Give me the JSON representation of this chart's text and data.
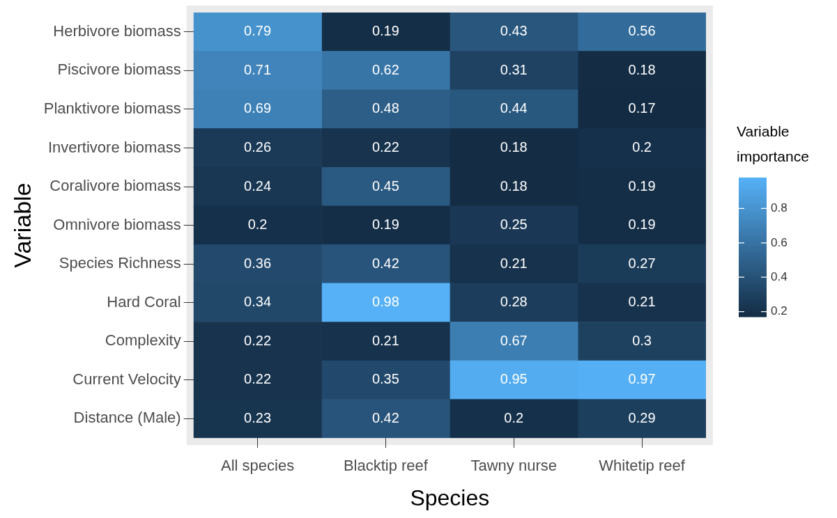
{
  "chart_data": {
    "type": "heatmap",
    "xlabel": "Species",
    "ylabel": "Variable",
    "clabel": "Variable importance",
    "categories": [
      "All species",
      "Blacktip reef",
      "Tawny nurse",
      "Whitetip reef"
    ],
    "y_categories": [
      "Herbivore biomass",
      "Piscivore biomass",
      "Planktivore biomass",
      "Invertivore biomass",
      "Coralivore biomass",
      "Omnivore biomass",
      "Species Richness",
      "Hard Coral",
      "Complexity",
      "Current Velocity",
      "Distance (Male)"
    ],
    "cells": [
      [
        0.79,
        0.19,
        0.43,
        0.56
      ],
      [
        0.71,
        0.62,
        0.31,
        0.18
      ],
      [
        0.69,
        0.48,
        0.44,
        0.17
      ],
      [
        0.26,
        0.22,
        0.18,
        0.2
      ],
      [
        0.24,
        0.45,
        0.18,
        0.19
      ],
      [
        0.2,
        0.19,
        0.25,
        0.19
      ],
      [
        0.36,
        0.42,
        0.21,
        0.27
      ],
      [
        0.34,
        0.98,
        0.28,
        0.21
      ],
      [
        0.22,
        0.21,
        0.67,
        0.3
      ],
      [
        0.22,
        0.35,
        0.95,
        0.97
      ],
      [
        0.23,
        0.42,
        0.2,
        0.29
      ]
    ],
    "clim": [
      0.17,
      0.98
    ],
    "cticks": [
      0.2,
      0.4,
      0.6,
      0.8
    ],
    "data_labels": true
  }
}
